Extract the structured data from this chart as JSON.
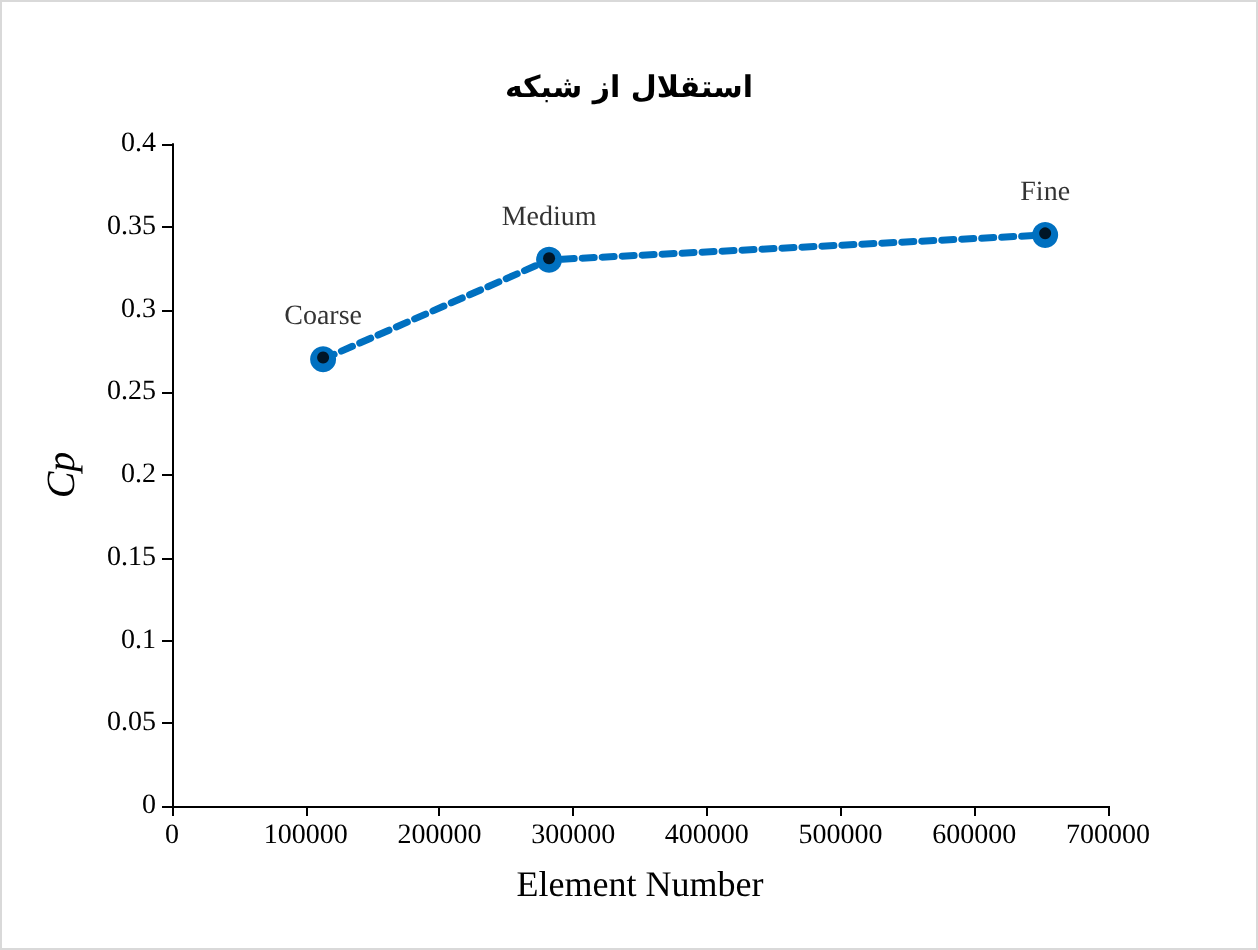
{
  "chart_data": {
    "type": "line",
    "title": "استقلال از شبکه",
    "xlabel": "Element Number",
    "ylabel": "Cp",
    "x": [
      113000,
      282000,
      653000
    ],
    "series": [
      {
        "color": "#0070c0",
        "values": [
          0.27,
          0.33,
          0.345
        ],
        "marker": "circle",
        "line_style": "dashed"
      },
      {
        "type": "scatter",
        "color": "#000000",
        "values": [
          0.271,
          0.331,
          0.346
        ],
        "marker": "circle"
      }
    ],
    "xlim": [
      0,
      700000
    ],
    "xticks": [
      0,
      100000,
      200000,
      300000,
      400000,
      500000,
      600000,
      700000
    ],
    "ylim": [
      0,
      0.4
    ],
    "yticks": [
      0,
      0.05,
      0.1,
      0.15,
      0.2,
      0.25,
      0.3,
      0.35,
      0.4
    ],
    "grid": false,
    "annotations": [
      {
        "text": "Coarse",
        "x": 113000,
        "y": 0.27
      },
      {
        "text": "Medium",
        "x": 282000,
        "y": 0.33
      },
      {
        "text": "Fine",
        "x": 653000,
        "y": 0.345
      }
    ]
  }
}
